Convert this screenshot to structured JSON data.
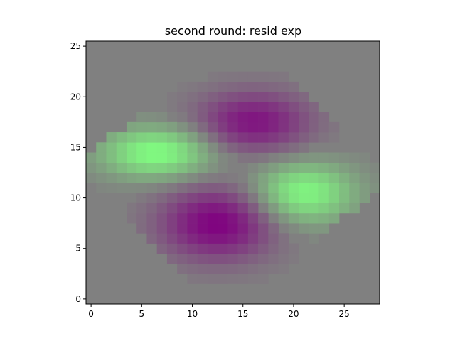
{
  "chart_data": {
    "type": "heatmap",
    "title": "second round: resid exp",
    "xlabel": "",
    "ylabel": "",
    "xlim": [
      -0.5,
      28.5
    ],
    "ylim": [
      -0.5,
      25.5
    ],
    "xticks": [
      0,
      5,
      10,
      15,
      20,
      25
    ],
    "yticks": [
      0,
      5,
      10,
      15,
      20,
      25
    ],
    "grid": false,
    "colors": {
      "background": "#808080",
      "positive": "#80ff80",
      "negative": "#800080"
    },
    "components": [
      {
        "name": "",
        "sign": "positive",
        "center": [
          6.5,
          14.5
        ],
        "spread": [
          5.5,
          2.5
        ],
        "amplitude": 1.0
      },
      {
        "name": "",
        "sign": "positive",
        "center": [
          21.0,
          10.5
        ],
        "spread": [
          5.0,
          3.0
        ],
        "amplitude": 0.95
      },
      {
        "name": "",
        "sign": "negative",
        "center": [
          12.5,
          7.5
        ],
        "spread": [
          5.5,
          3.5
        ],
        "amplitude": 1.0
      },
      {
        "name": "",
        "sign": "negative",
        "center": [
          16.0,
          17.5
        ],
        "spread": [
          5.5,
          3.0
        ],
        "amplitude": 0.85
      }
    ],
    "support": {
      "center": [
        14,
        12.5
      ],
      "half_width": 16,
      "half_height": 14
    }
  }
}
